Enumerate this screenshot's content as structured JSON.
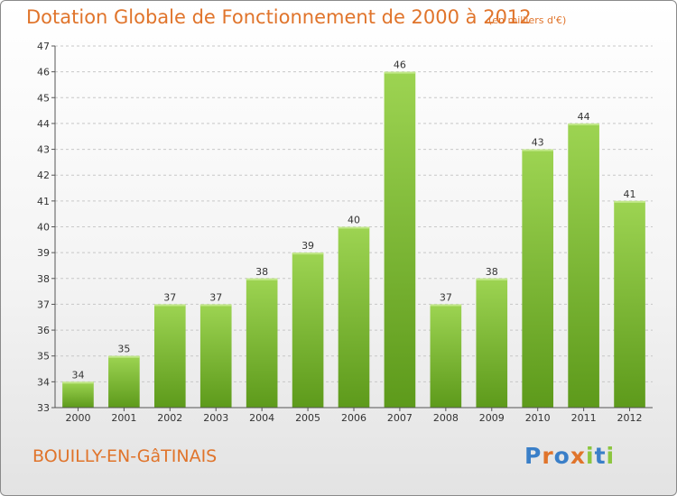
{
  "title": "Dotation Globale de Fonctionnement de 2000 à 2012",
  "subtitle": "(en milliers d'€)",
  "commune": "BOUILLY-EN-GâTINAIS",
  "logo": {
    "letters": [
      "P",
      "r",
      "o",
      "x",
      "i",
      "t",
      "i"
    ],
    "colors": [
      "#3a7fc8",
      "#e0742b",
      "#3a7fc8",
      "#e0742b",
      "#8cc63f",
      "#3a7fc8",
      "#8cc63f"
    ]
  },
  "colors": {
    "bar_top": "#9dd452",
    "bar_bottom": "#5d9a1b",
    "title": "#e0742b"
  },
  "chart_data": {
    "type": "bar",
    "categories": [
      "2000",
      "2001",
      "2002",
      "2003",
      "2004",
      "2005",
      "2006",
      "2007",
      "2008",
      "2009",
      "2010",
      "2011",
      "2012"
    ],
    "values": [
      34,
      35,
      37,
      37,
      38,
      39,
      40,
      46,
      37,
      38,
      43,
      44,
      41
    ],
    "ylim": [
      33,
      47
    ],
    "yticks": [
      33,
      34,
      35,
      36,
      37,
      38,
      39,
      40,
      41,
      42,
      43,
      44,
      45,
      46,
      47
    ],
    "grid": true
  }
}
